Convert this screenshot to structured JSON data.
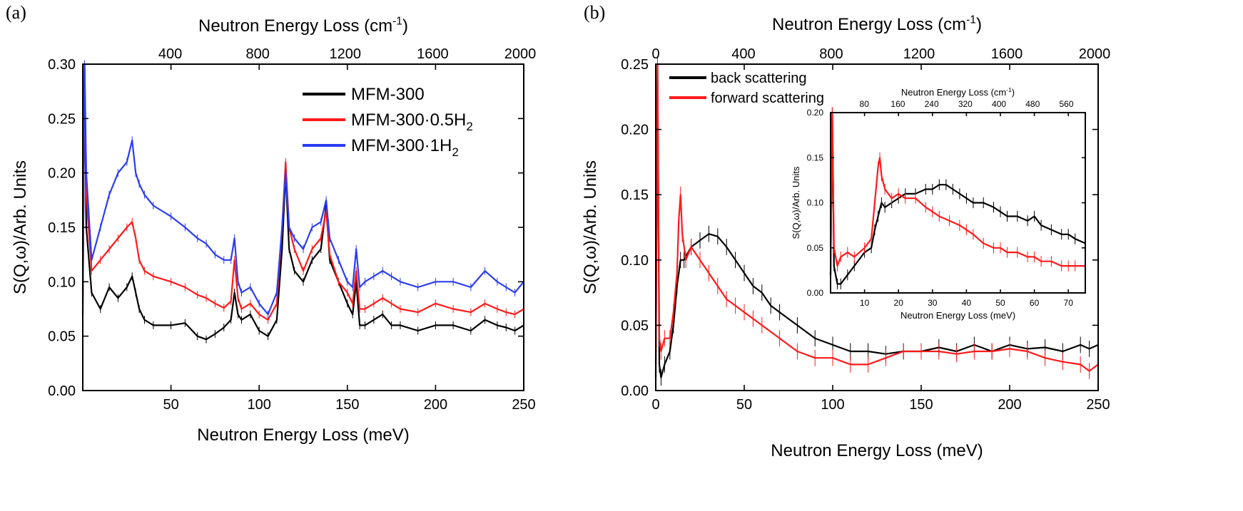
{
  "colors": {
    "black": "#000000",
    "red": "#ff1a1a",
    "blue": "#2b3df0"
  },
  "chart_data": [
    {
      "panel_label": "(a)",
      "type": "line",
      "xlabel": "Neutron Energy Loss (meV)",
      "x2label": "Neutron Energy Loss (cm",
      "x2label_sup": "-1",
      "x2label_end": ")",
      "ylabel": "S(Q,ω)/Arb. Units",
      "xlim": [
        0,
        250
      ],
      "ylim": [
        0,
        0.3
      ],
      "xticks": [
        "50",
        "100",
        "150",
        "200",
        "250"
      ],
      "yticks": [
        "0.00",
        "0.05",
        "0.10",
        "0.15",
        "0.20",
        "0.25",
        "0.30"
      ],
      "x2ticks": [
        "400",
        "800",
        "1200",
        "1600",
        "2000"
      ],
      "grid": false,
      "legend_position": "top-right",
      "series": [
        {
          "name": "MFM-300",
          "color": "#000000",
          "x": [
            0,
            1,
            2,
            5,
            10,
            15,
            20,
            25,
            28,
            30,
            32,
            35,
            40,
            50,
            58,
            65,
            70,
            75,
            80,
            84,
            86,
            88,
            90,
            95,
            100,
            105,
            110,
            113,
            115,
            117,
            120,
            125,
            130,
            135,
            138,
            140,
            145,
            150,
            153,
            155,
            157,
            160,
            165,
            170,
            175,
            180,
            190,
            200,
            210,
            220,
            228,
            235,
            240,
            245,
            250
          ],
          "values": [
            0.07,
            0.3,
            0.15,
            0.09,
            0.075,
            0.095,
            0.085,
            0.095,
            0.105,
            0.09,
            0.075,
            0.065,
            0.06,
            0.06,
            0.062,
            0.05,
            0.047,
            0.052,
            0.058,
            0.065,
            0.09,
            0.07,
            0.065,
            0.07,
            0.055,
            0.05,
            0.065,
            0.13,
            0.2,
            0.13,
            0.11,
            0.1,
            0.12,
            0.13,
            0.17,
            0.12,
            0.1,
            0.08,
            0.07,
            0.1,
            0.06,
            0.06,
            0.065,
            0.07,
            0.06,
            0.06,
            0.055,
            0.06,
            0.06,
            0.055,
            0.065,
            0.06,
            0.058,
            0.055,
            0.06
          ]
        },
        {
          "name": "MFM-300·0.5H",
          "name_sub": "2",
          "color": "#ff1a1a",
          "x": [
            0,
            1,
            2,
            5,
            10,
            15,
            20,
            25,
            28,
            30,
            32,
            35,
            40,
            50,
            58,
            65,
            70,
            75,
            80,
            84,
            86,
            88,
            90,
            95,
            100,
            105,
            110,
            113,
            115,
            117,
            120,
            125,
            130,
            135,
            138,
            140,
            145,
            150,
            153,
            155,
            157,
            160,
            165,
            170,
            175,
            180,
            190,
            200,
            210,
            220,
            228,
            235,
            240,
            245,
            250
          ],
          "values": [
            0.08,
            0.3,
            0.18,
            0.11,
            0.12,
            0.13,
            0.14,
            0.15,
            0.155,
            0.14,
            0.12,
            0.11,
            0.105,
            0.1,
            0.095,
            0.088,
            0.085,
            0.08,
            0.076,
            0.082,
            0.12,
            0.085,
            0.075,
            0.08,
            0.07,
            0.065,
            0.08,
            0.15,
            0.21,
            0.15,
            0.13,
            0.11,
            0.13,
            0.14,
            0.165,
            0.125,
            0.1,
            0.09,
            0.08,
            0.11,
            0.075,
            0.075,
            0.08,
            0.085,
            0.08,
            0.075,
            0.072,
            0.08,
            0.075,
            0.072,
            0.08,
            0.075,
            0.072,
            0.07,
            0.075
          ]
        },
        {
          "name": "MFM-300·1H",
          "name_sub": "2",
          "color": "#2b3df0",
          "x": [
            0,
            1,
            2,
            5,
            10,
            15,
            20,
            25,
            28,
            30,
            32,
            35,
            40,
            50,
            58,
            65,
            70,
            75,
            80,
            84,
            86,
            88,
            90,
            95,
            100,
            105,
            110,
            113,
            115,
            117,
            120,
            125,
            130,
            135,
            138,
            140,
            145,
            150,
            153,
            155,
            157,
            160,
            165,
            170,
            175,
            180,
            190,
            200,
            210,
            220,
            228,
            235,
            240,
            245,
            250
          ],
          "values": [
            0.09,
            0.3,
            0.2,
            0.12,
            0.15,
            0.18,
            0.2,
            0.21,
            0.23,
            0.2,
            0.19,
            0.18,
            0.17,
            0.16,
            0.15,
            0.14,
            0.135,
            0.125,
            0.12,
            0.12,
            0.14,
            0.1,
            0.09,
            0.095,
            0.08,
            0.07,
            0.09,
            0.15,
            0.2,
            0.15,
            0.14,
            0.13,
            0.15,
            0.155,
            0.175,
            0.14,
            0.12,
            0.1,
            0.095,
            0.13,
            0.095,
            0.1,
            0.105,
            0.11,
            0.105,
            0.1,
            0.095,
            0.1,
            0.1,
            0.095,
            0.11,
            0.1,
            0.095,
            0.09,
            0.1
          ]
        }
      ]
    },
    {
      "panel_label": "(b)",
      "type": "line",
      "xlabel": "Neutron Energy Loss (meV)",
      "x2label": "Neutron Energy Loss (cm",
      "x2label_sup": "-1",
      "x2label_end": ")",
      "ylabel": "S(Q,ω)/Arb. Units",
      "xlim": [
        0,
        250
      ],
      "ylim": [
        0,
        0.25
      ],
      "xticks": [
        "0",
        "50",
        "100",
        "150",
        "200",
        "250"
      ],
      "yticks": [
        "0.00",
        "0.05",
        "0.10",
        "0.15",
        "0.20",
        "0.25"
      ],
      "x2ticks": [
        "0",
        "400",
        "800",
        "1200",
        "1600",
        "2000"
      ],
      "grid": false,
      "legend_position": "top-left",
      "series": [
        {
          "name": "back scattering",
          "color": "#000000",
          "x": [
            0,
            1,
            2,
            3,
            5,
            8,
            10,
            12,
            14,
            16,
            20,
            25,
            30,
            35,
            40,
            45,
            50,
            55,
            60,
            65,
            70,
            80,
            90,
            100,
            110,
            120,
            130,
            140,
            150,
            160,
            170,
            180,
            190,
            200,
            210,
            220,
            230,
            240,
            245,
            250
          ],
          "values": [
            0.01,
            0.25,
            0.02,
            0.01,
            0.02,
            0.03,
            0.05,
            0.08,
            0.1,
            0.1,
            0.11,
            0.115,
            0.12,
            0.118,
            0.11,
            0.1,
            0.09,
            0.08,
            0.075,
            0.065,
            0.06,
            0.05,
            0.04,
            0.035,
            0.03,
            0.03,
            0.028,
            0.03,
            0.03,
            0.033,
            0.03,
            0.035,
            0.03,
            0.035,
            0.032,
            0.033,
            0.03,
            0.035,
            0.032,
            0.035
          ]
        },
        {
          "name": "forward scattering",
          "color": "#ff1a1a",
          "x": [
            0,
            1,
            2,
            3,
            5,
            8,
            10,
            12,
            13,
            14,
            15,
            17,
            20,
            25,
            30,
            35,
            40,
            45,
            50,
            55,
            60,
            70,
            80,
            90,
            100,
            110,
            120,
            130,
            140,
            150,
            160,
            170,
            180,
            190,
            200,
            210,
            220,
            230,
            240,
            245,
            250
          ],
          "values": [
            0.02,
            0.25,
            0.04,
            0.03,
            0.04,
            0.04,
            0.06,
            0.09,
            0.13,
            0.15,
            0.12,
            0.1,
            0.11,
            0.1,
            0.09,
            0.08,
            0.07,
            0.065,
            0.06,
            0.055,
            0.05,
            0.04,
            0.03,
            0.025,
            0.025,
            0.02,
            0.02,
            0.025,
            0.03,
            0.03,
            0.03,
            0.028,
            0.03,
            0.03,
            0.032,
            0.03,
            0.025,
            0.022,
            0.02,
            0.015,
            0.02
          ]
        }
      ]
    },
    {
      "panel_label": "(b) inset",
      "type": "line",
      "xlabel": "Neutron Energy Loss (meV)",
      "x2label": "Neutron Energy Loss (cm",
      "x2label_sup": "-1",
      "x2label_end": ")",
      "ylabel": "S(Q,ω)/Arb. Units",
      "xlim": [
        0,
        75
      ],
      "ylim": [
        0,
        0.2
      ],
      "xticks": [
        "10",
        "20",
        "30",
        "40",
        "50",
        "60",
        "70"
      ],
      "yticks": [
        "0.00",
        "0.05",
        "0.10",
        "0.15",
        "0.20"
      ],
      "x2ticks": [
        "80",
        "160",
        "240",
        "320",
        "400",
        "480",
        "560"
      ],
      "grid": false,
      "series": [
        {
          "name": "back scattering",
          "color": "#000000",
          "x": [
            0,
            0.5,
            1,
            2,
            3,
            5,
            7,
            10,
            12,
            13,
            14,
            15,
            16,
            18,
            20,
            22,
            25,
            28,
            30,
            32,
            34,
            36,
            38,
            40,
            42,
            45,
            48,
            50,
            52,
            55,
            58,
            60,
            62,
            65,
            68,
            70,
            72,
            75
          ],
          "values": [
            0.02,
            0.2,
            0.03,
            0.01,
            0.01,
            0.02,
            0.03,
            0.045,
            0.05,
            0.07,
            0.085,
            0.1,
            0.095,
            0.1,
            0.105,
            0.11,
            0.11,
            0.115,
            0.115,
            0.12,
            0.12,
            0.115,
            0.11,
            0.105,
            0.1,
            0.1,
            0.095,
            0.09,
            0.085,
            0.085,
            0.08,
            0.085,
            0.075,
            0.07,
            0.065,
            0.065,
            0.06,
            0.055
          ]
        },
        {
          "name": "forward scattering",
          "color": "#ff1a1a",
          "x": [
            0,
            0.5,
            1,
            2,
            3,
            5,
            7,
            10,
            12,
            13,
            14,
            14.5,
            15,
            16,
            18,
            20,
            22,
            25,
            28,
            30,
            32,
            35,
            38,
            40,
            42,
            45,
            48,
            50,
            52,
            55,
            58,
            60,
            62,
            65,
            68,
            70,
            72,
            75
          ],
          "values": [
            0.02,
            0.2,
            0.05,
            0.03,
            0.04,
            0.045,
            0.04,
            0.05,
            0.06,
            0.1,
            0.14,
            0.15,
            0.13,
            0.115,
            0.105,
            0.11,
            0.105,
            0.105,
            0.095,
            0.09,
            0.085,
            0.08,
            0.075,
            0.07,
            0.065,
            0.055,
            0.05,
            0.05,
            0.045,
            0.045,
            0.04,
            0.04,
            0.035,
            0.035,
            0.03,
            0.03,
            0.03,
            0.03
          ]
        }
      ]
    }
  ]
}
